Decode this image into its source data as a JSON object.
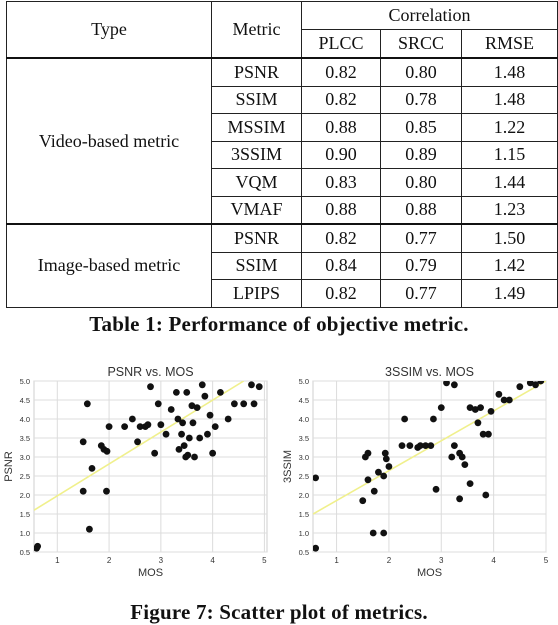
{
  "table": {
    "headers": {
      "type": "Type",
      "metric": "Metric",
      "correlation": "Correlation",
      "plcc": "PLCC",
      "srcc": "SRCC",
      "rmse": "RMSE"
    },
    "groups": [
      {
        "type": "Video-based metric",
        "rows": [
          {
            "metric": "PSNR",
            "plcc": "0.82",
            "srcc": "0.80",
            "rmse": "1.48"
          },
          {
            "metric": "SSIM",
            "plcc": "0.82",
            "srcc": "0.78",
            "rmse": "1.48"
          },
          {
            "metric": "MSSIM",
            "plcc": "0.88",
            "srcc": "0.85",
            "rmse": "1.22"
          },
          {
            "metric": "3SSIM",
            "plcc": "0.90",
            "srcc": "0.89",
            "rmse": "1.15"
          },
          {
            "metric": "VQM",
            "plcc": "0.83",
            "srcc": "0.80",
            "rmse": "1.44"
          },
          {
            "metric": "VMAF",
            "plcc": "0.88",
            "srcc": "0.88",
            "rmse": "1.23"
          }
        ]
      },
      {
        "type": "Image-based metric",
        "rows": [
          {
            "metric": "PSNR",
            "plcc": "0.82",
            "srcc": "0.77",
            "rmse": "1.50"
          },
          {
            "metric": "SSIM",
            "plcc": "0.84",
            "srcc": "0.79",
            "rmse": "1.42"
          },
          {
            "metric": "LPIPS",
            "plcc": "0.82",
            "srcc": "0.77",
            "rmse": "1.49"
          }
        ]
      }
    ]
  },
  "caption1": "Table 1: Performance of objective metric.",
  "caption2": "Figure 7: Scatter plot of metrics.",
  "colors": {
    "points": "#111111",
    "fit": "#f0f08c",
    "grid": "#dcdcdc"
  },
  "chart_data": [
    {
      "type": "scatter",
      "title": "PSNR vs. MOS",
      "xlabel": "MOS",
      "ylabel": "PSNR",
      "xlim": [
        0.55,
        5.05
      ],
      "ylim": [
        0.5,
        5.0
      ],
      "xticks": [
        "1",
        "2",
        "3",
        "4",
        "5"
      ],
      "yticks": [
        "0.5",
        "1.0",
        "1.5",
        "2.0",
        "2.5",
        "3.0",
        "3.5",
        "4.0",
        "4.5",
        "5.0"
      ],
      "grid": true,
      "fit_line": {
        "x": [
          0.55,
          4.6
        ],
        "y": [
          1.6,
          5.0
        ]
      },
      "points": [
        [
          0.6,
          0.6
        ],
        [
          0.62,
          0.65
        ],
        [
          1.5,
          2.1
        ],
        [
          1.5,
          3.4
        ],
        [
          1.58,
          4.4
        ],
        [
          1.62,
          1.1
        ],
        [
          1.67,
          2.7
        ],
        [
          1.85,
          3.3
        ],
        [
          1.9,
          3.2
        ],
        [
          1.95,
          2.1
        ],
        [
          1.96,
          3.15
        ],
        [
          2.0,
          3.8
        ],
        [
          2.3,
          3.8
        ],
        [
          2.45,
          4.0
        ],
        [
          2.55,
          3.4
        ],
        [
          2.6,
          3.8
        ],
        [
          2.7,
          3.8
        ],
        [
          2.75,
          3.85
        ],
        [
          2.8,
          4.85
        ],
        [
          2.88,
          3.1
        ],
        [
          2.95,
          4.4
        ],
        [
          3.0,
          3.85
        ],
        [
          3.1,
          3.6
        ],
        [
          3.2,
          4.25
        ],
        [
          3.3,
          4.7
        ],
        [
          3.33,
          4.0
        ],
        [
          3.35,
          3.2
        ],
        [
          3.4,
          3.6
        ],
        [
          3.42,
          3.9
        ],
        [
          3.45,
          3.3
        ],
        [
          3.48,
          3.0
        ],
        [
          3.5,
          4.7
        ],
        [
          3.52,
          3.05
        ],
        [
          3.55,
          3.5
        ],
        [
          3.6,
          4.35
        ],
        [
          3.62,
          3.9
        ],
        [
          3.65,
          3.0
        ],
        [
          3.7,
          4.3
        ],
        [
          3.75,
          3.5
        ],
        [
          3.8,
          4.9
        ],
        [
          3.85,
          4.6
        ],
        [
          3.9,
          3.6
        ],
        [
          3.95,
          4.1
        ],
        [
          4.0,
          3.1
        ],
        [
          4.05,
          3.8
        ],
        [
          4.15,
          4.7
        ],
        [
          4.3,
          4.0
        ],
        [
          4.42,
          4.4
        ],
        [
          4.6,
          4.4
        ],
        [
          4.75,
          4.9
        ],
        [
          4.8,
          4.4
        ],
        [
          4.9,
          4.85
        ]
      ]
    },
    {
      "type": "scatter",
      "title": "3SSIM vs. MOS",
      "xlabel": "MOS",
      "ylabel": "3SSIM",
      "xlim": [
        0.55,
        5.0
      ],
      "ylim": [
        0.5,
        5.0
      ],
      "xticks": [
        "1",
        "2",
        "3",
        "4",
        "5"
      ],
      "yticks": [
        "0.5",
        "1.0",
        "1.5",
        "2.0",
        "2.5",
        "3.0",
        "3.5",
        "4.0",
        "4.5",
        "5.0"
      ],
      "grid": true,
      "fit_line": {
        "x": [
          0.55,
          5.0
        ],
        "y": [
          1.5,
          5.0
        ]
      },
      "points": [
        [
          0.6,
          0.6
        ],
        [
          0.6,
          2.45
        ],
        [
          1.5,
          1.85
        ],
        [
          1.55,
          3.0
        ],
        [
          1.6,
          3.1
        ],
        [
          1.6,
          2.4
        ],
        [
          1.7,
          1.0
        ],
        [
          1.72,
          2.1
        ],
        [
          1.8,
          2.6
        ],
        [
          1.9,
          2.5
        ],
        [
          1.9,
          1.0
        ],
        [
          1.93,
          3.1
        ],
        [
          1.95,
          2.95
        ],
        [
          2.0,
          2.75
        ],
        [
          2.25,
          3.3
        ],
        [
          2.3,
          4.0
        ],
        [
          2.4,
          3.3
        ],
        [
          2.55,
          3.25
        ],
        [
          2.6,
          3.3
        ],
        [
          2.7,
          3.3
        ],
        [
          2.8,
          3.3
        ],
        [
          2.85,
          4.0
        ],
        [
          2.9,
          2.15
        ],
        [
          3.0,
          4.3
        ],
        [
          3.1,
          4.95
        ],
        [
          3.2,
          3.0
        ],
        [
          3.25,
          4.9
        ],
        [
          3.25,
          3.3
        ],
        [
          3.35,
          3.1
        ],
        [
          3.35,
          1.9
        ],
        [
          3.4,
          3.0
        ],
        [
          3.45,
          2.8
        ],
        [
          3.55,
          2.3
        ],
        [
          3.55,
          4.3
        ],
        [
          3.65,
          4.25
        ],
        [
          3.7,
          3.9
        ],
        [
          3.75,
          4.3
        ],
        [
          3.8,
          3.6
        ],
        [
          3.85,
          2.0
        ],
        [
          3.9,
          3.6
        ],
        [
          3.95,
          4.2
        ],
        [
          4.1,
          4.65
        ],
        [
          4.2,
          4.5
        ],
        [
          4.3,
          4.5
        ],
        [
          4.5,
          4.85
        ],
        [
          4.7,
          4.95
        ],
        [
          4.8,
          4.9
        ],
        [
          4.9,
          5.0
        ]
      ]
    }
  ]
}
